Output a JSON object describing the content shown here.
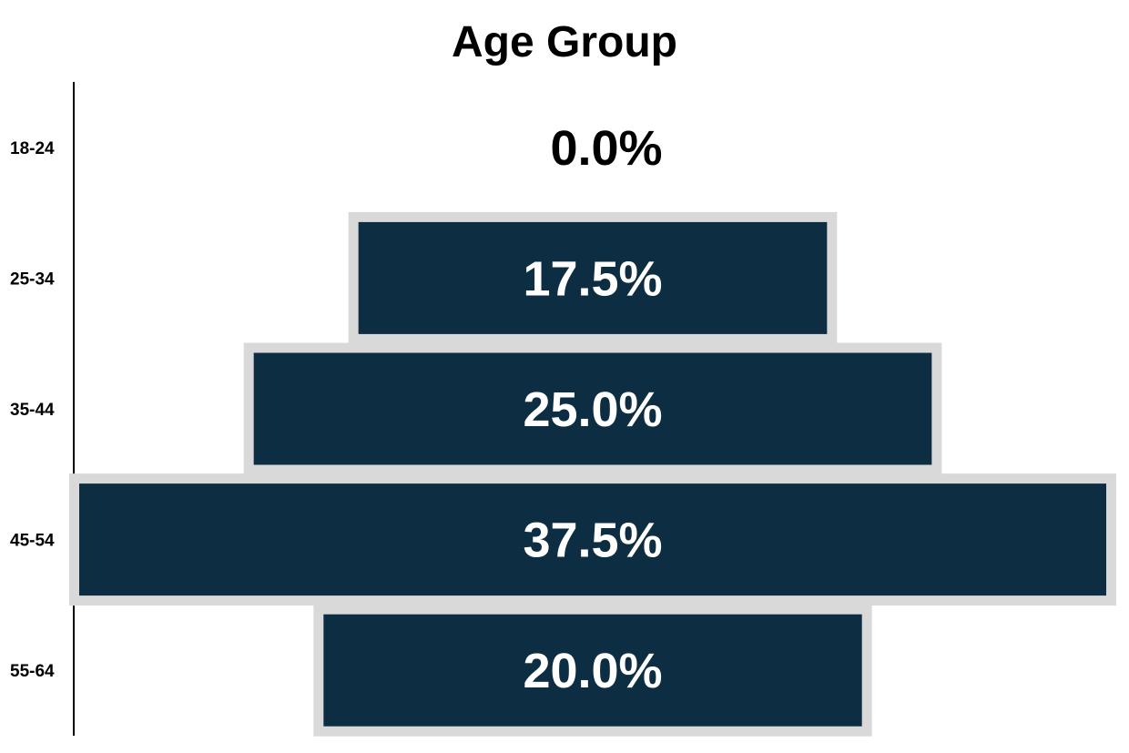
{
  "chart_data": {
    "type": "bar",
    "orientation": "horizontal",
    "layout": "centered-funnel",
    "title": "Age Group",
    "categories": [
      "18-24",
      "25-34",
      "35-44",
      "45-54",
      "55-64"
    ],
    "values": [
      0.0,
      17.5,
      25.0,
      37.5,
      20.0
    ],
    "data_labels": [
      "0.0%",
      "17.5%",
      "25.0%",
      "37.5%",
      "20.0%"
    ],
    "unit": "%",
    "xlim": [
      0,
      37.5
    ],
    "grid": false,
    "legend": "none"
  },
  "colors": {
    "bar_fill": "#0d2e42",
    "bar_border": "#d9d9d9",
    "label_on_bar": "#ffffff",
    "label_empty": "#000000",
    "axis": "#000000"
  }
}
